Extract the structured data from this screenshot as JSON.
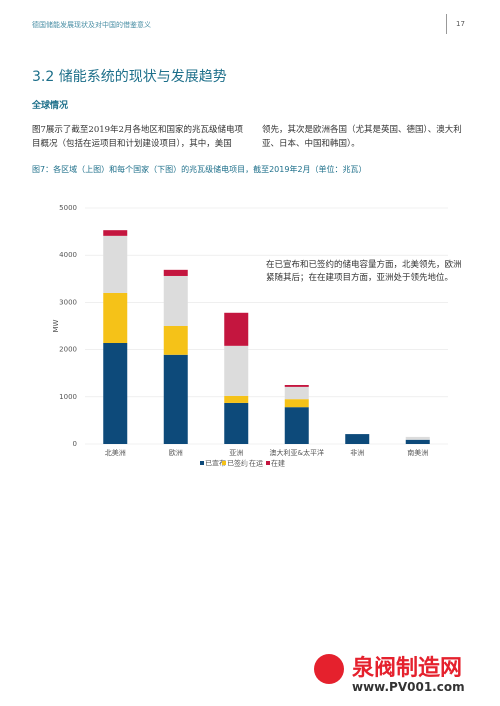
{
  "header": {
    "title": "德国储能发展现状及对中国的借鉴意义",
    "page": "17"
  },
  "section": {
    "title": "3.2 储能系统的现状与发展趋势",
    "subtitle": "全球情况"
  },
  "paragraph": {
    "left": "图7展示了截至2019年2月各地区和国家的兆瓦级储电项目概况（包括在运项目和计划建设项目），其中，美国",
    "right": "领先，其次是欧洲各国（尤其是英国、德国）、澳大利亚、日本、中国和韩国）。"
  },
  "figure_caption": "图7：各区域（上图）和每个国家（下图）的兆瓦级储电项目，截至2019年2月（单位：兆瓦）",
  "chart_data": {
    "type": "stacked-bar",
    "y_label": "MW",
    "categories": [
      "北美洲",
      "欧洲",
      "亚洲",
      "澳大利亚&太平洋",
      "非洲",
      "南美洲"
    ],
    "series": [
      {
        "name": "已宣布",
        "color": "#0d4a7a",
        "values": [
          2140,
          1890,
          870,
          780,
          210,
          90
        ]
      },
      {
        "name": "已签约",
        "color": "#f5c218",
        "values": [
          1060,
          610,
          150,
          170,
          0,
          0
        ]
      },
      {
        "name": "在运",
        "color": "#dcdcdc",
        "values": [
          1210,
          1060,
          1060,
          260,
          0,
          60
        ]
      },
      {
        "name": "在建",
        "color": "#c4163f",
        "values": [
          120,
          130,
          700,
          40,
          0,
          0
        ]
      }
    ],
    "ylim": [
      0,
      5000
    ],
    "yticks": [
      0,
      1000,
      2000,
      3000,
      4000,
      5000
    ],
    "grid": true,
    "annotation": "在已宣布和已签约的储电容量方面，北美领先，欧洲紧随其后；在在建项目方面，亚洲处于领先地位。"
  },
  "watermark": {
    "name": "泉阀制造网",
    "url": "www.PV001.com"
  }
}
